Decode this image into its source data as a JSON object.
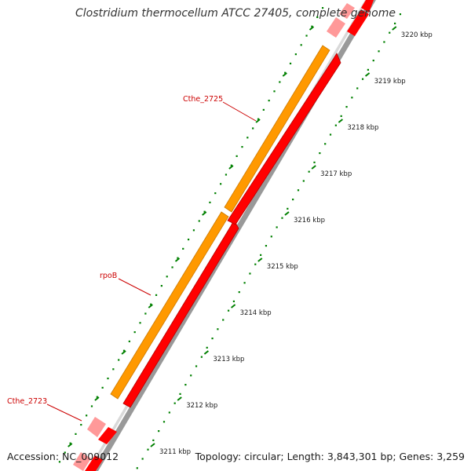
{
  "title": "Clostridium thermocellum ATCC 27405, complete genome",
  "accession": "Accession: NC_009012",
  "summary": "Topology: circular; Length: 3,843,301 bp; Genes: 3,259",
  "scale_unit": "kbp",
  "ticks": [
    3211,
    3212,
    3213,
    3214,
    3215,
    3216,
    3217,
    3218,
    3219,
    3220
  ],
  "gene_labels": [
    "Cthe_2725",
    "rpoB",
    "Cthe_2723"
  ],
  "colors": {
    "forward_gene": "#ff9900",
    "reverse_gene": "#ff0000",
    "faded_gene": "#ff9999",
    "backbone": "#999999",
    "ticks": "#008000",
    "gene_label": "#cc0000"
  }
}
